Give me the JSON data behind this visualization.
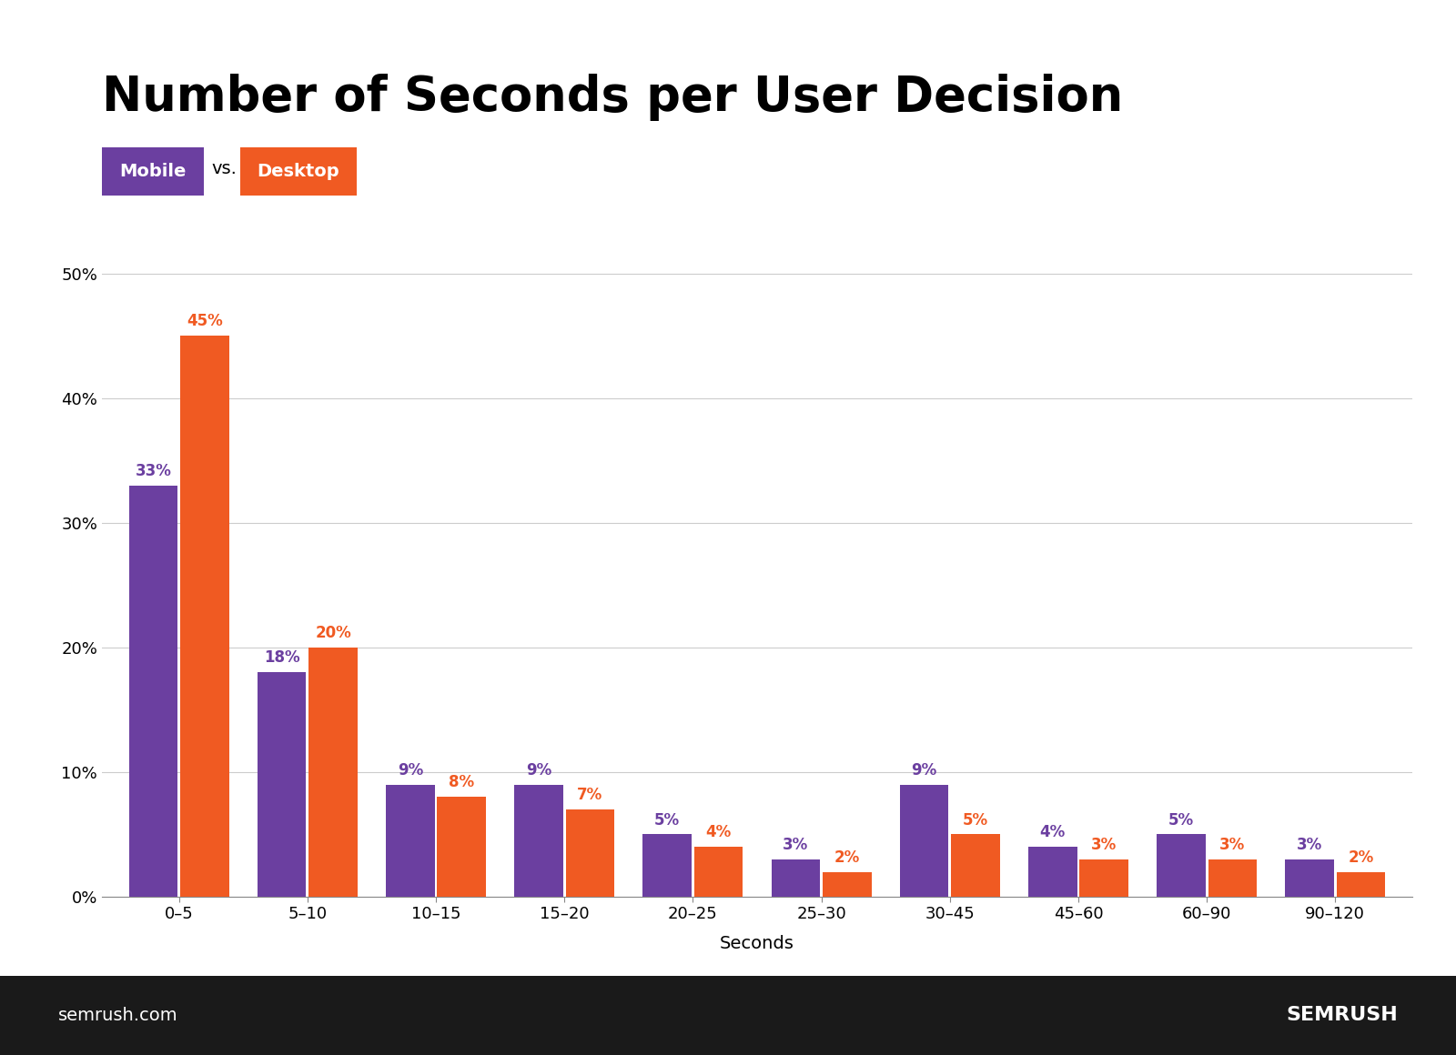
{
  "title": "Number of Seconds per User Decision",
  "xlabel": "Seconds",
  "categories": [
    "0–5",
    "5–10",
    "10–15",
    "15–20",
    "20–25",
    "25–30",
    "30–45",
    "45–60",
    "60–90",
    "90–120"
  ],
  "mobile_values": [
    33,
    18,
    9,
    9,
    5,
    3,
    9,
    4,
    5,
    3
  ],
  "desktop_values": [
    45,
    20,
    8,
    7,
    4,
    2,
    5,
    3,
    3,
    2
  ],
  "mobile_color": "#6B3FA0",
  "desktop_color": "#F05A22",
  "mobile_label": "Mobile",
  "desktop_label": "Desktop",
  "mobile_text_color": "#6B3FA0",
  "desktop_text_color": "#F05A22",
  "ylim": [
    0,
    55
  ],
  "yticks": [
    0,
    10,
    20,
    30,
    40,
    50
  ],
  "ytick_labels": [
    "0%",
    "10%",
    "20%",
    "30%",
    "40%",
    "50%"
  ],
  "background_color": "#ffffff",
  "title_fontsize": 38,
  "axis_label_fontsize": 14,
  "tick_fontsize": 13,
  "bar_label_fontsize": 12,
  "legend_fontsize": 14,
  "footer_bg_color": "#1a1a1a",
  "footer_text_color": "#ffffff",
  "footer_left": "semrush.com",
  "footer_right": "SEMRUSH"
}
